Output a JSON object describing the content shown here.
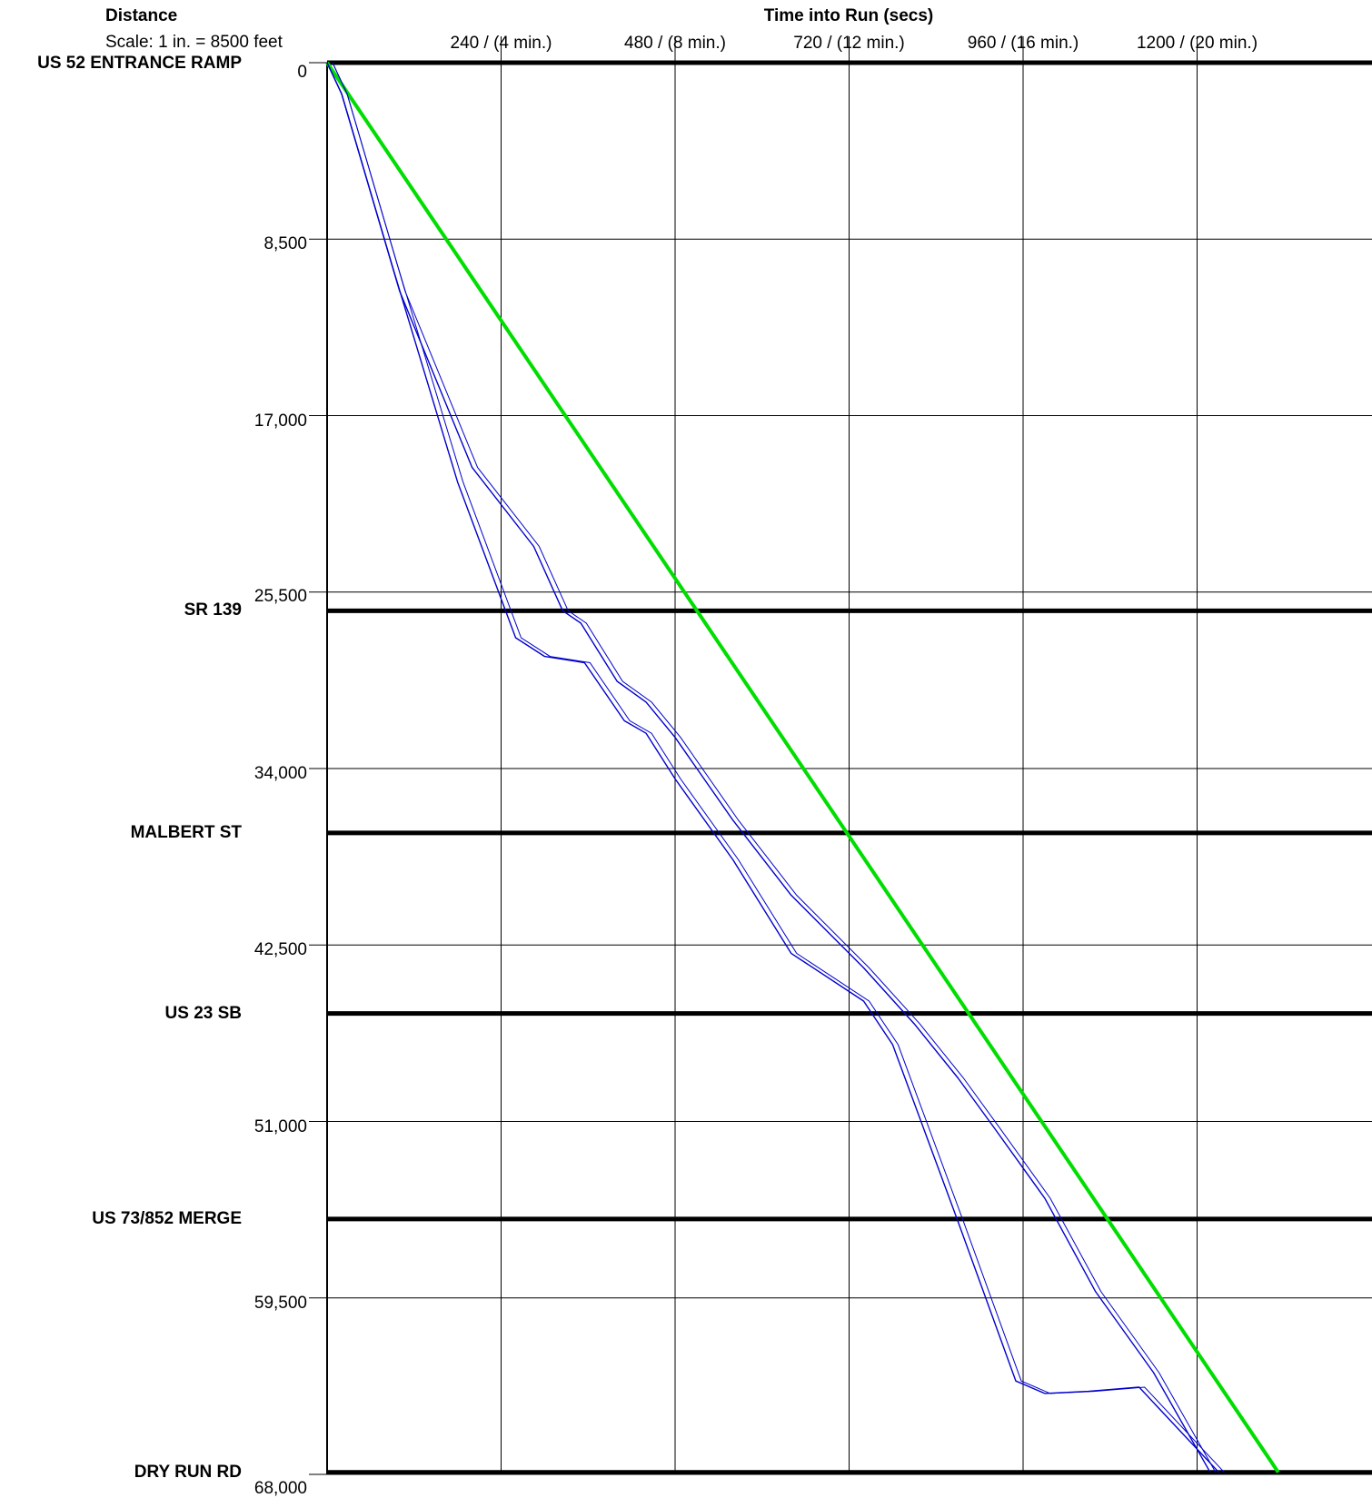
{
  "header": {
    "distance_title": "Distance",
    "scale_note": "Scale: 1 in. = 8500 feet",
    "time_title": "Time into Run (secs)"
  },
  "chart_data": {
    "type": "line",
    "title": "",
    "xlabel": "Time into Run (secs)",
    "ylabel": "Distance",
    "x_ticks": [
      {
        "value": 240,
        "label": "240 / (4 min.)"
      },
      {
        "value": 480,
        "label": "480 / (8 min.)"
      },
      {
        "value": 720,
        "label": "720 / (12 min.)"
      },
      {
        "value": 960,
        "label": "960 / (16 min.)"
      },
      {
        "value": 1200,
        "label": "1200 / (20 min.)"
      }
    ],
    "y_ticks": [
      {
        "value": 0,
        "label": "0"
      },
      {
        "value": 8500,
        "label": "8,500"
      },
      {
        "value": 17000,
        "label": "17,000"
      },
      {
        "value": 25500,
        "label": "25,500"
      },
      {
        "value": 34000,
        "label": "34,000"
      },
      {
        "value": 42500,
        "label": "42,500"
      },
      {
        "value": 51000,
        "label": "51,000"
      },
      {
        "value": 59500,
        "label": "59,500"
      },
      {
        "value": 68000,
        "label": "68,000"
      }
    ],
    "xlim": [
      0,
      1440
    ],
    "ylim": [
      0,
      68000
    ],
    "y_inverted": true,
    "grid": true,
    "landmarks": [
      {
        "name": "US 52 ENTRANCE RAMP",
        "distance": 0
      },
      {
        "name": "SR 139",
        "distance": 26400
      },
      {
        "name": "MALBERT ST",
        "distance": 37100
      },
      {
        "name": "US 23 SB",
        "distance": 45800
      },
      {
        "name": "US 73/852 MERGE",
        "distance": 55700
      },
      {
        "name": "DRY RUN RD",
        "distance": 67900
      }
    ],
    "series": [
      {
        "color": "#00dd00",
        "role": "reference",
        "x": [
          0,
          1312
        ],
        "y": [
          0,
          67900
        ]
      },
      {
        "color": "#0000cc",
        "x": [
          0,
          20,
          90,
          180,
          260,
          300,
          355,
          410,
          440,
          480,
          560,
          640,
          740,
          780,
          870,
          950,
          990,
          1050,
          1120,
          1230
        ],
        "y": [
          0,
          1500,
          9800,
          20200,
          27700,
          28600,
          28900,
          31700,
          32300,
          34500,
          38400,
          42900,
          45200,
          47300,
          55800,
          63500,
          64100,
          64000,
          63800,
          67900
        ]
      },
      {
        "color": "#0000cc",
        "x": [
          0,
          20,
          100,
          200,
          285,
          325,
          350,
          400,
          440,
          480,
          560,
          640,
          740,
          810,
          870,
          920,
          990,
          1060,
          1140,
          1218
        ],
        "y": [
          0,
          1500,
          11000,
          19500,
          23300,
          26400,
          27000,
          29800,
          30800,
          32500,
          36500,
          40100,
          43600,
          46300,
          48900,
          51300,
          54700,
          59200,
          63100,
          67900
        ]
      }
    ]
  }
}
